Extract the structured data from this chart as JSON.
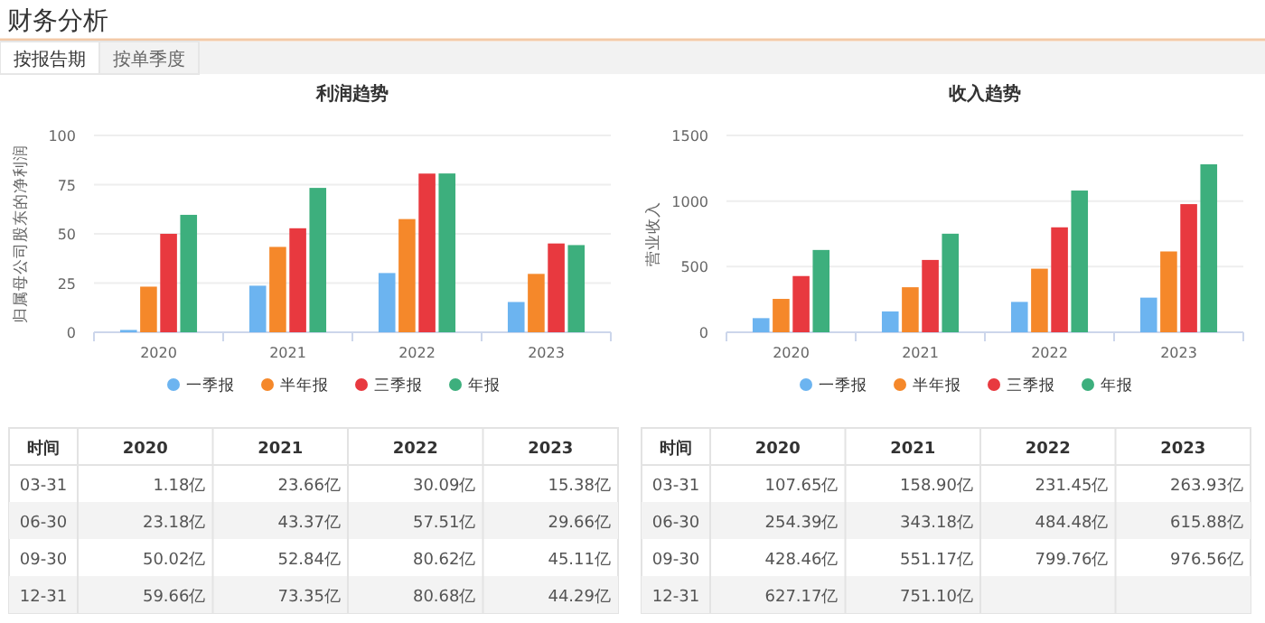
{
  "chart_data": [
    {
      "type": "other",
      "title": "财务分析",
      "annotations": [
        "按报告期",
        "按单季度"
      ]
    },
    {
      "type": "bar",
      "title": "利润趋势",
      "ylabel": "归属母公司股东的净利润",
      "categories": [
        "2020",
        "2021",
        "2022",
        "2023"
      ],
      "ylim": [
        0,
        100
      ],
      "yticks": [
        0,
        25,
        50,
        75,
        100
      ],
      "grid": "y",
      "legend": "bottom",
      "annotations": [
        "时间",
        "03-31",
        "06-30",
        "09-30",
        "12-31"
      ],
      "series": [
        {
          "name": "一季报",
          "color": "#6cb4f0",
          "values": [
            1.18,
            23.66,
            30.09,
            15.38
          ],
          "value_labels": [
            "1.18亿",
            "23.66亿",
            "30.09亿",
            "15.38亿"
          ]
        },
        {
          "name": "半年报",
          "color": "#f5882a",
          "values": [
            23.18,
            43.37,
            57.51,
            29.66
          ],
          "value_labels": [
            "23.18亿",
            "43.37亿",
            "57.51亿",
            "29.66亿"
          ]
        },
        {
          "name": "三季报",
          "color": "#e8393f",
          "values": [
            50.02,
            52.84,
            80.62,
            45.11
          ],
          "value_labels": [
            "50.02亿",
            "52.84亿",
            "80.62亿",
            "45.11亿"
          ]
        },
        {
          "name": "年报",
          "color": "#3daf7d",
          "values": [
            59.66,
            73.35,
            80.68,
            44.29
          ],
          "value_labels": [
            "59.66亿",
            "73.35亿",
            "80.68亿",
            "44.29亿"
          ]
        }
      ]
    },
    {
      "type": "bar",
      "title": "收入趋势",
      "ylabel": "营业收入",
      "categories": [
        "2020",
        "2021",
        "2022",
        "2023"
      ],
      "ylim": [
        0,
        1500
      ],
      "yticks": [
        0,
        500,
        1000,
        1500
      ],
      "grid": "y",
      "legend": "bottom",
      "annotations": [
        "时间",
        "03-31",
        "06-30",
        "09-30",
        "12-31"
      ],
      "series": [
        {
          "name": "一季报",
          "color": "#6cb4f0",
          "values": [
            107.65,
            158.9,
            231.45,
            263.93
          ],
          "value_labels": [
            "107.65亿",
            "158.90亿",
            "231.45亿",
            "263.93亿"
          ]
        },
        {
          "name": "半年报",
          "color": "#f5882a",
          "values": [
            254.39,
            343.18,
            484.48,
            615.88
          ],
          "value_labels": [
            "254.39亿",
            "343.18亿",
            "484.48亿",
            "615.88亿"
          ]
        },
        {
          "name": "三季报",
          "color": "#e8393f",
          "values": [
            428.46,
            551.17,
            799.76,
            976.56
          ],
          "value_labels": [
            "428.46亿",
            "551.17亿",
            "799.76亿",
            "976.56亿"
          ]
        },
        {
          "name": "年报",
          "color": "#3daf7d",
          "values": [
            627.17,
            751.1,
            1080,
            1280
          ],
          "value_labels": [
            "627.17亿",
            "751.10亿",
            null,
            null
          ]
        }
      ]
    }
  ]
}
